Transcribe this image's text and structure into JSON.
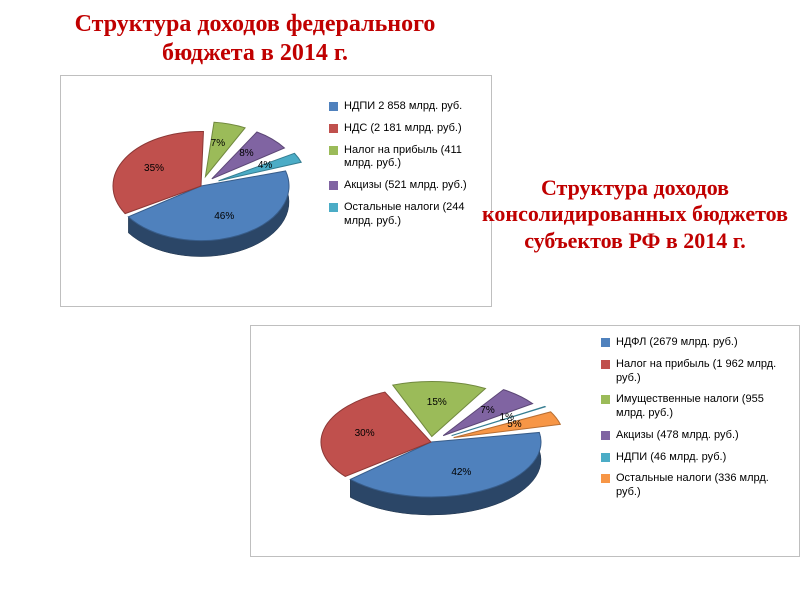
{
  "chart1": {
    "type": "pie",
    "title": "Структура доходов федерального бюджета в 2014 г.",
    "title_color": "#c00000",
    "title_fontsize": 24,
    "panel_border": "#bfbfbf",
    "background_color": "#ffffff",
    "start_angle_deg": -18,
    "gap_deg": 4,
    "tilt_scale_y": 0.62,
    "depth_edge": "#000000",
    "slices": [
      {
        "label": "НДПИ 2 858 млрд. руб.",
        "value": 46,
        "pct": "46%",
        "fill": "#4f81bd",
        "edge": "#385d8a",
        "explode": 0.0
      },
      {
        "label": "НДС (2 181 млрд. руб.)",
        "value": 35,
        "pct": "35%",
        "fill": "#c0504d",
        "edge": "#8c3836",
        "explode": 0.0
      },
      {
        "label": "Налог на прибыль (411 млрд. руб.)",
        "value": 7,
        "pct": "7%",
        "fill": "#9bbb59",
        "edge": "#71893f",
        "explode": 0.18
      },
      {
        "label": "Акцизы (521 млрд. руб.)",
        "value": 8,
        "pct": "8%",
        "fill": "#8064a2",
        "edge": "#5c4776",
        "explode": 0.18
      },
      {
        "label": "Остальные налоги (244 млрд. руб.)",
        "value": 4,
        "pct": "4%",
        "fill": "#4bacc6",
        "edge": "#357d91",
        "explode": 0.22
      }
    ],
    "legend_bullet_color": "#4f81bd",
    "legend_fontsize": 11,
    "slice_label_fontsize": 10
  },
  "chart2": {
    "type": "pie",
    "title": "Структура доходов консолидированных бюджетов субъектов РФ в 2014 г.",
    "title_color": "#c00000",
    "title_fontsize": 22,
    "panel_border": "#bfbfbf",
    "background_color": "#ffffff",
    "start_angle_deg": -12,
    "gap_deg": 4,
    "tilt_scale_y": 0.5,
    "slices": [
      {
        "label": "НДФЛ (2679 млрд. руб.)",
        "value": 42,
        "pct": "42%",
        "fill": "#4f81bd",
        "edge": "#385d8a",
        "explode": 0.0
      },
      {
        "label": "Налог на прибыль (1 962 млрд. руб.)",
        "value": 30,
        "pct": "30%",
        "fill": "#c0504d",
        "edge": "#8c3836",
        "explode": 0.0
      },
      {
        "label": "Имущественные налоги (955 млрд. руб.)",
        "value": 15,
        "pct": "15%",
        "fill": "#9bbb59",
        "edge": "#71893f",
        "explode": 0.1
      },
      {
        "label": "Акцизы  (478 млрд. руб.)",
        "value": 7,
        "pct": "7%",
        "fill": "#8064a2",
        "edge": "#5c4776",
        "explode": 0.16
      },
      {
        "label": "НДПИ (46 млрд. руб.)",
        "value": 1,
        "pct": "1%",
        "fill": "#4bacc6",
        "edge": "#357d91",
        "explode": 0.22
      },
      {
        "label": "Остальные налоги (336 млрд. руб.)",
        "value": 5,
        "pct": "5%",
        "fill": "#f79646",
        "edge": "#b86e32",
        "explode": 0.22
      }
    ],
    "legend_bullet_color": "#4f81bd",
    "legend_fontsize": 11,
    "slice_label_fontsize": 10
  }
}
